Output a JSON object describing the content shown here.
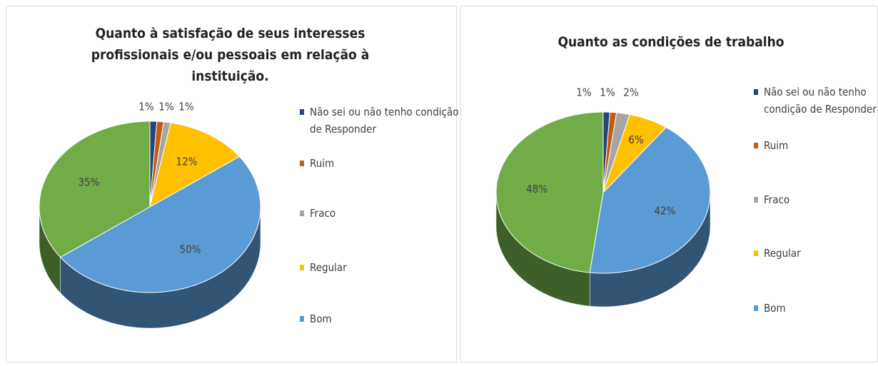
{
  "chart_data": [
    {
      "type": "pie",
      "title": "Quanto à satisfação de seus interesses profissionais e/ou pessoais em relação à instituição.",
      "categories": [
        "Não sei ou não tenho condição de Responder",
        "Ruim",
        "Fraco",
        "Regular",
        "Bom",
        null
      ],
      "values": [
        1,
        1,
        1,
        12,
        50,
        35
      ],
      "value_labels": [
        "1%",
        "1%",
        "1%",
        "12%",
        "50%",
        "35%"
      ],
      "colors": [
        "#264478",
        "#c55a11",
        "#a5a5a5",
        "#ffc000",
        "#5b9bd5",
        "#70ad47"
      ]
    },
    {
      "type": "pie",
      "title": "Quanto as condições de trabalho",
      "categories": [
        "Não sei ou não tenho condição de Responder",
        "Ruim",
        "Fraco",
        "Regular",
        "Bom",
        null
      ],
      "values": [
        1,
        1,
        2,
        6,
        42,
        48
      ],
      "value_labels": [
        "1%",
        "1%",
        "2%",
        "6%",
        "42%",
        "48%"
      ],
      "colors": [
        "#264478",
        "#c55a11",
        "#a5a5a5",
        "#ffc000",
        "#5b9bd5",
        "#70ad47"
      ]
    }
  ]
}
